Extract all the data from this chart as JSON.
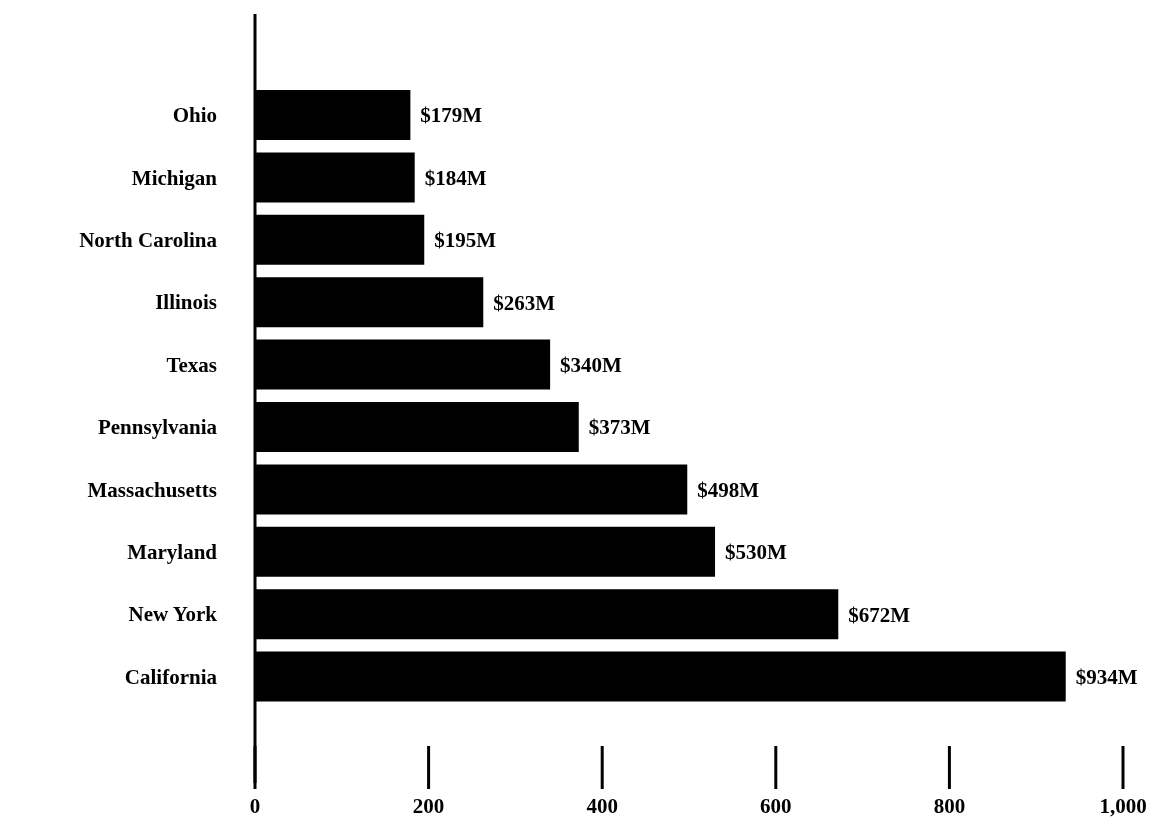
{
  "chart_data": {
    "type": "bar",
    "orientation": "horizontal",
    "categories": [
      "Ohio",
      "Michigan",
      "North Carolina",
      "Illinois",
      "Texas",
      "Pennsylvania",
      "Massachusetts",
      "Maryland",
      "New York",
      "California"
    ],
    "values": [
      179,
      184,
      195,
      263,
      340,
      373,
      498,
      530,
      672,
      934
    ],
    "value_labels": [
      "$179M",
      "$184M",
      "$195M",
      "$263M",
      "$340M",
      "$373M",
      "$498M",
      "$530M",
      "$672M",
      "$934M"
    ],
    "color": "#000000",
    "xlim": [
      0,
      1000
    ],
    "xticks": [
      0,
      200,
      400,
      600,
      800,
      {
        "value": 1000,
        "label": "1,000"
      }
    ],
    "grid": false,
    "legend": false
  }
}
